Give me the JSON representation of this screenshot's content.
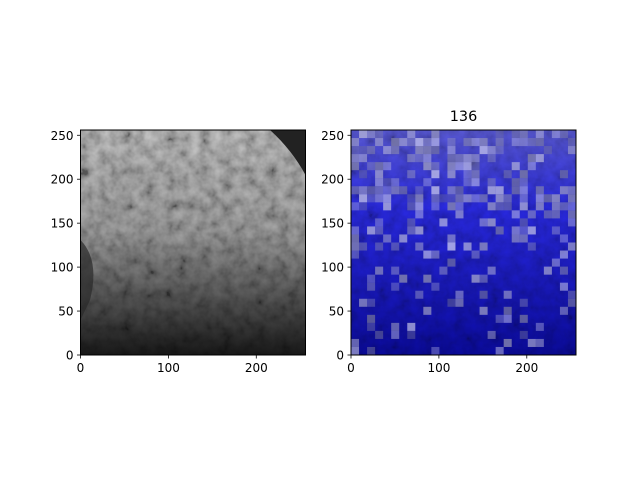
{
  "figure": {
    "background": "#ffffff"
  },
  "chart_data": [
    {
      "type": "heatmap",
      "image": "grayscale terrain texture",
      "title": "",
      "xlabel": "",
      "ylabel": "",
      "xlim": [
        0,
        256
      ],
      "ylim": [
        0,
        256
      ],
      "xticks": [
        0,
        100,
        200
      ],
      "yticks": [
        0,
        50,
        100,
        150,
        200,
        250
      ],
      "grid": false
    },
    {
      "type": "heatmap",
      "image": "grayscale terrain texture with blue mask overlay",
      "title": "136",
      "xlabel": "",
      "ylabel": "",
      "xlim": [
        0,
        256
      ],
      "ylim": [
        0,
        256
      ],
      "xticks": [
        0,
        100,
        200
      ],
      "yticks": [
        0,
        50,
        100,
        150,
        200,
        250
      ],
      "grid": false,
      "overlay_color": "#0000ff"
    }
  ]
}
